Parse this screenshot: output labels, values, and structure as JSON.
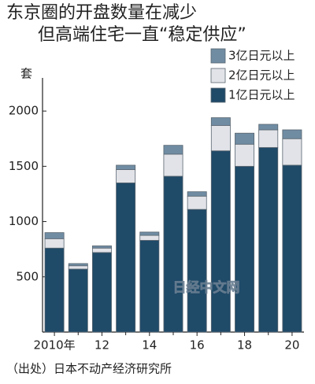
{
  "chart_data": {
    "type": "stacked_bar",
    "title": "东京圈的开盘数量在减少",
    "subtitle": "但高端住宅一直“稳定供应”",
    "y_label": "套",
    "source": "（出处）日本不动产经济研究所",
    "watermark": "日经中文网",
    "categories": [
      "2010年",
      null,
      "12",
      null,
      "14",
      null,
      "16",
      null,
      "18",
      null,
      "20"
    ],
    "series": [
      {
        "name": "1亿日元以上",
        "color": "#1f4a68",
        "values": [
          760,
          570,
          720,
          1350,
          830,
          1410,
          1110,
          1640,
          1500,
          1670,
          1510
        ]
      },
      {
        "name": "2亿日元以上",
        "color": "#e1e3e8",
        "values": [
          85,
          30,
          40,
          120,
          45,
          200,
          120,
          230,
          200,
          160,
          240
        ]
      },
      {
        "name": "3亿日元以上",
        "color": "#6f8ca3",
        "values": [
          55,
          20,
          20,
          40,
          30,
          80,
          40,
          70,
          100,
          50,
          80
        ]
      }
    ],
    "ylim": [
      0,
      2300
    ],
    "yticks": [
      500,
      1000,
      1500,
      2000
    ],
    "legend": "top-right"
  }
}
